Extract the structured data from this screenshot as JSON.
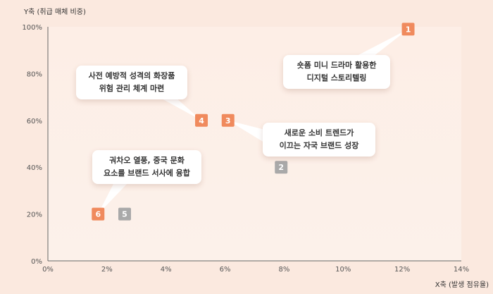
{
  "chart_data": {
    "type": "scatter",
    "xlabel": "X축 (발생 점유율)",
    "ylabel": "Y축 (취급 매체 비중)",
    "xlim": [
      0,
      14
    ],
    "ylim": [
      0,
      100
    ],
    "x_ticks": [
      "0%",
      "2%",
      "4%",
      "6%",
      "8%",
      "10%",
      "12%",
      "14%"
    ],
    "y_ticks": [
      "0%",
      "20%",
      "40%",
      "60%",
      "80%",
      "100%"
    ],
    "grid": false,
    "points": [
      {
        "label": "1",
        "x": 12.2,
        "y": 99,
        "color": "#f08a5d",
        "lines": [
          "숏폼 미니 드라마 활용한",
          "디지털 스토리텔링"
        ]
      },
      {
        "label": "2",
        "x": 7.9,
        "y": 40,
        "color": "#a9a9a9",
        "lines": []
      },
      {
        "label": "3",
        "x": 6.1,
        "y": 60,
        "color": "#f08a5d",
        "lines": [
          "새로운 소비 트렌드가",
          "이끄는 자국 브랜드 성장"
        ]
      },
      {
        "label": "4",
        "x": 5.2,
        "y": 60,
        "color": "#f08a5d",
        "lines": [
          "사전 예방적 성격의 화장품",
          "위험 관리 체계 마련"
        ]
      },
      {
        "label": "5",
        "x": 2.6,
        "y": 20,
        "color": "#a9a9a9",
        "lines": []
      },
      {
        "label": "6",
        "x": 1.7,
        "y": 20,
        "color": "#f08a5d",
        "lines": [
          "궈차오 열풍, 중국 문화",
          "요소를 브랜드 서사에 융합"
        ]
      }
    ]
  }
}
